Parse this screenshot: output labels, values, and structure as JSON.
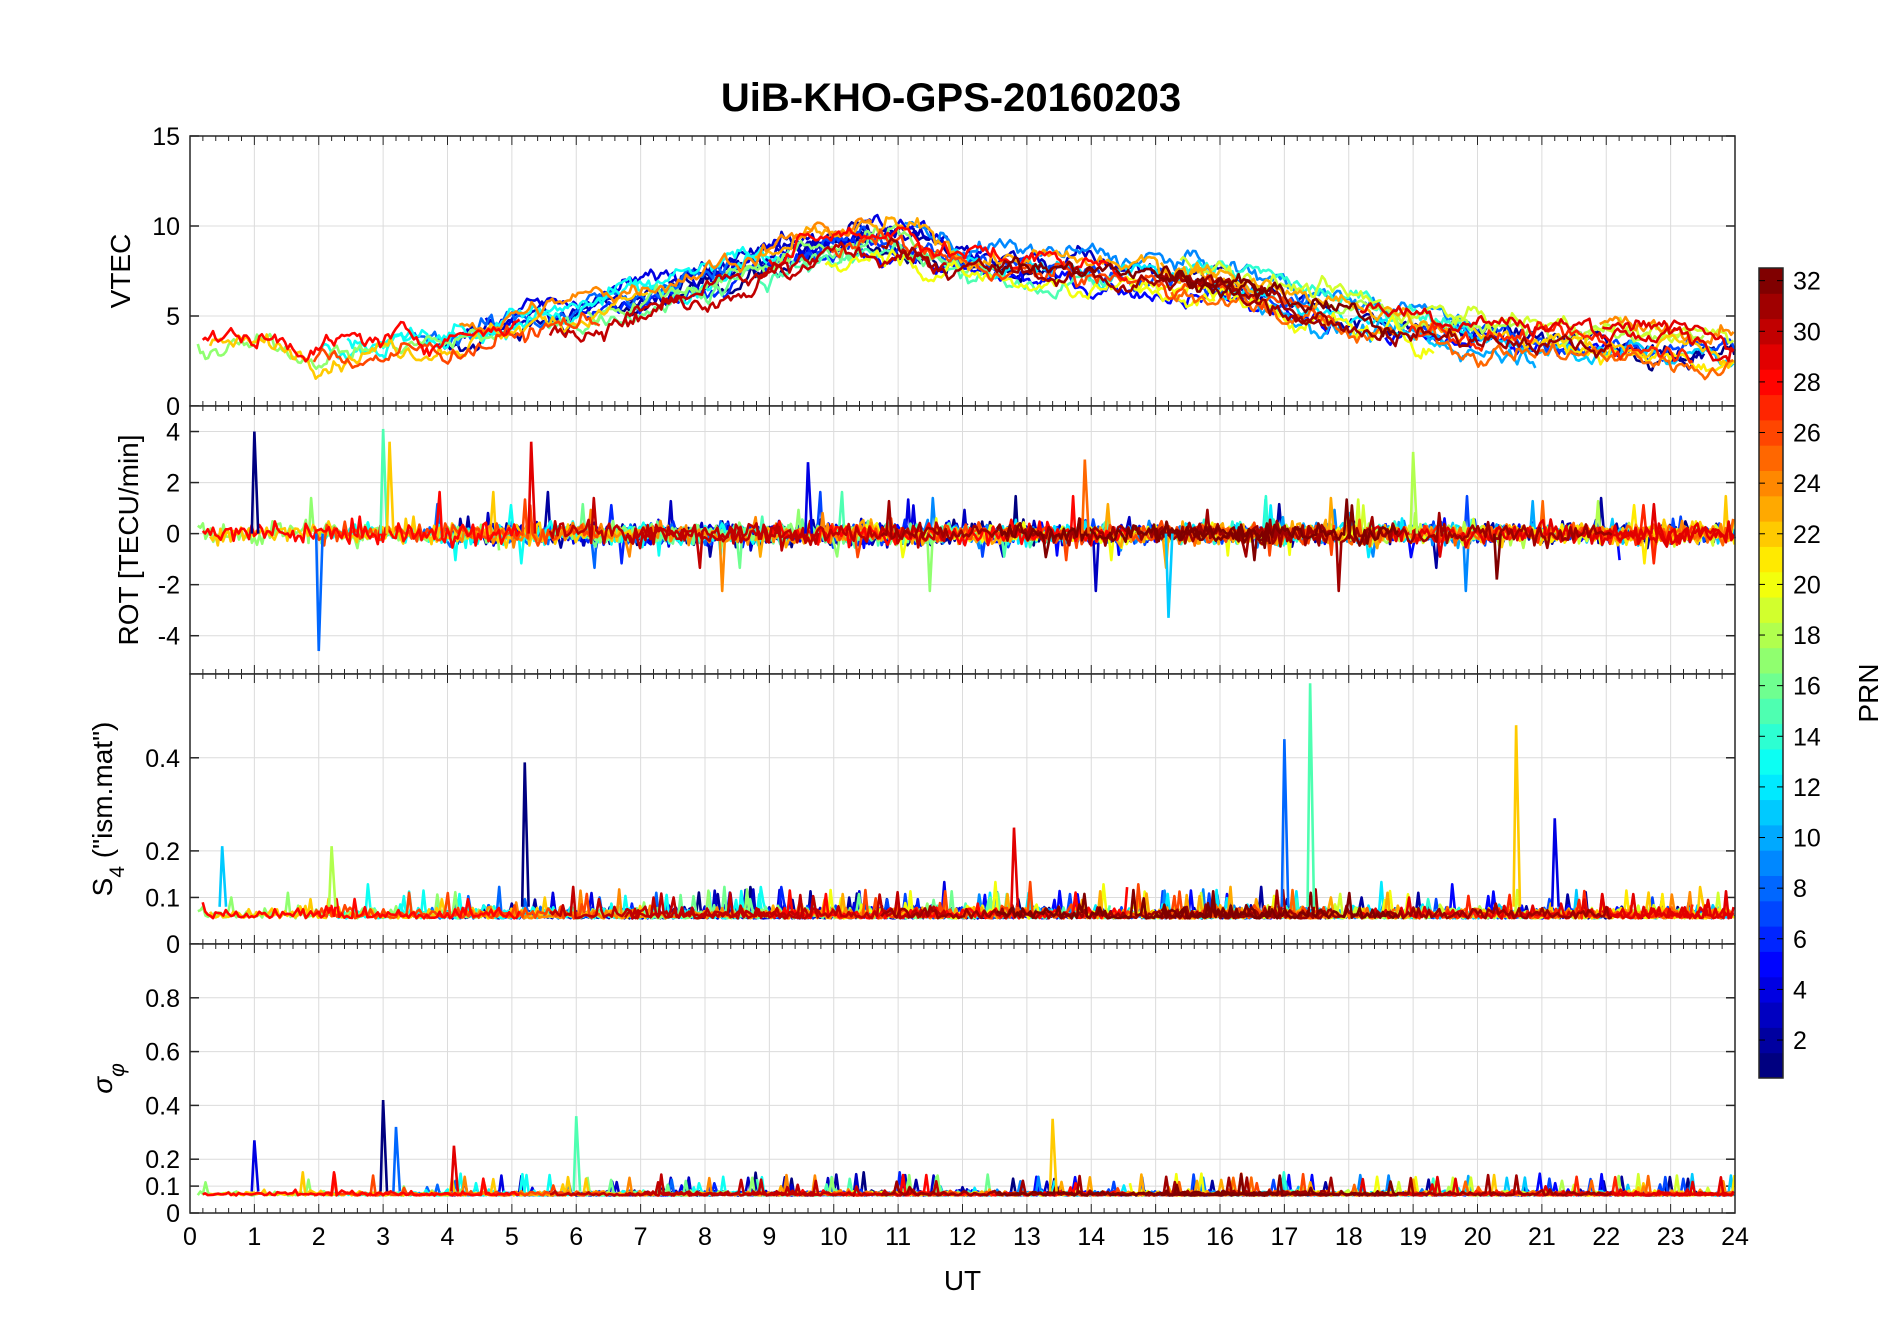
{
  "title": "UiB-KHO-GPS-20160203",
  "chart_data": [
    {
      "type": "line",
      "panel": "vtec",
      "ylabel": "VTEC",
      "ylim": [
        0,
        15
      ],
      "yticks": [
        0,
        5,
        10,
        15
      ],
      "grid": true,
      "series_summary": "32 PRN traces, VTEC ~2-4 at night, peaking ~8-10.5 around 10-12 UT",
      "envelope": {
        "x": [
          0,
          2,
          4,
          6,
          8,
          10,
          11,
          12,
          14,
          16,
          18,
          20,
          22,
          24
        ],
        "y": [
          3.5,
          3,
          3.5,
          5,
          7,
          9,
          9.5,
          8,
          7.5,
          7,
          5,
          4,
          3.5,
          3
        ]
      }
    },
    {
      "type": "line",
      "panel": "rot",
      "ylabel": "ROT [TECU/min]",
      "ylim": [
        -5.5,
        5
      ],
      "yticks": [
        -4,
        -2,
        0,
        2,
        4
      ],
      "grid": true,
      "spikes": [
        {
          "x": 1.0,
          "y": 4.0
        },
        {
          "x": 2.0,
          "y": -4.6
        },
        {
          "x": 3.0,
          "y": 4.1
        },
        {
          "x": 3.1,
          "y": 3.6
        },
        {
          "x": 5.3,
          "y": 3.6
        },
        {
          "x": 9.6,
          "y": 2.8
        },
        {
          "x": 15.2,
          "y": -3.3
        },
        {
          "x": 19.0,
          "y": 3.2
        },
        {
          "x": 13.9,
          "y": 2.9
        },
        {
          "x": 20.3,
          "y": -1.8
        }
      ]
    },
    {
      "type": "line",
      "panel": "s4",
      "ylabel": "S4 (\"ism.mat\")",
      "ylim": [
        0,
        0.58
      ],
      "yticks": [
        0,
        0.1,
        0.2,
        0.4
      ],
      "grid": true,
      "spikes": [
        {
          "x": 5.2,
          "y": 0.39
        },
        {
          "x": 17.0,
          "y": 0.44
        },
        {
          "x": 17.4,
          "y": 0.56
        },
        {
          "x": 20.6,
          "y": 0.47
        },
        {
          "x": 12.8,
          "y": 0.25
        },
        {
          "x": 21.2,
          "y": 0.27
        },
        {
          "x": 0.5,
          "y": 0.21
        },
        {
          "x": 2.2,
          "y": 0.21
        }
      ]
    },
    {
      "type": "line",
      "panel": "sigma_phi",
      "ylabel": "σ_φ",
      "ylim": [
        0,
        1
      ],
      "yticks": [
        0,
        0.1,
        0.2,
        0.4,
        0.6,
        0.8
      ],
      "grid": true,
      "spikes": [
        {
          "x": 3.0,
          "y": 0.42
        },
        {
          "x": 3.2,
          "y": 0.32
        },
        {
          "x": 6.0,
          "y": 0.36
        },
        {
          "x": 13.4,
          "y": 0.35
        },
        {
          "x": 4.1,
          "y": 0.25
        },
        {
          "x": 1.0,
          "y": 0.27
        }
      ]
    }
  ],
  "xaxis": {
    "label": "UT",
    "ticks": [
      "0",
      "1",
      "2",
      "3",
      "4",
      "5",
      "6",
      "7",
      "8",
      "9",
      "10",
      "11",
      "12",
      "13",
      "14",
      "15",
      "16",
      "17",
      "18",
      "19",
      "20",
      "21",
      "22",
      "23",
      "24"
    ],
    "range": [
      0,
      24
    ]
  },
  "colorbar": {
    "label": "PRN",
    "ticks": [
      "2",
      "4",
      "6",
      "8",
      "10",
      "12",
      "14",
      "16",
      "18",
      "20",
      "22",
      "24",
      "26",
      "28",
      "30",
      "32"
    ],
    "range": [
      1,
      32
    ],
    "colormap": "jet"
  },
  "colors": {
    "grid": "#dcdcdc",
    "axes": "#262626"
  }
}
